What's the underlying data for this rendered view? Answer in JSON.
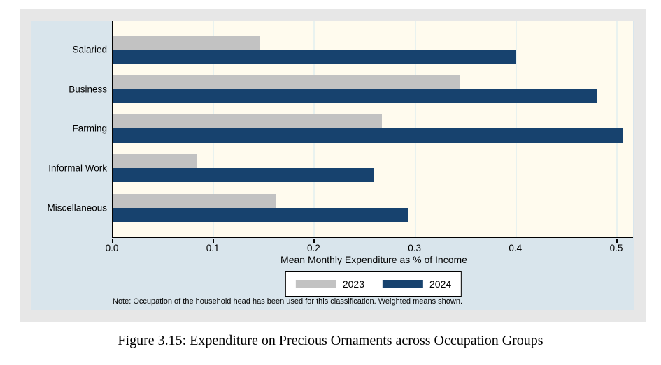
{
  "page": {
    "caption": "Figure 3.15: Expenditure on Precious Ornaments across Occupation Groups"
  },
  "palette": {
    "series_2023": "#c2c2c2",
    "series_2024": "#17426e",
    "plot_background": "#fffbee",
    "graph_background": "#d9e5ec",
    "panel_background": "#e7e7e7",
    "gridline": "#e9f2ef"
  },
  "chart_data": {
    "type": "bar",
    "orientation": "horizontal",
    "categories": [
      "Salaried",
      "Business",
      "Farming",
      "Informal Work",
      "Miscellaneous"
    ],
    "series": [
      {
        "name": "2023",
        "color": "#c2c2c2",
        "values": [
          0.146,
          0.345,
          0.268,
          0.084,
          0.163
        ]
      },
      {
        "name": "2024",
        "color": "#17426e",
        "values": [
          0.4,
          0.481,
          0.506,
          0.26,
          0.293
        ]
      }
    ],
    "xlabel": "Mean Monthly Expenditure as % of Income",
    "x_ticks": [
      "0.0",
      "0.1",
      "0.2",
      "0.3",
      "0.4",
      "0.5"
    ],
    "x_tick_values": [
      0.0,
      0.1,
      0.2,
      0.3,
      0.4,
      0.5
    ],
    "xlim": [
      0,
      0.518
    ],
    "grid": true,
    "legend_position": "bottom-center",
    "note": "Note: Occupation of the household head has been used for this classification. Weighted means shown."
  }
}
